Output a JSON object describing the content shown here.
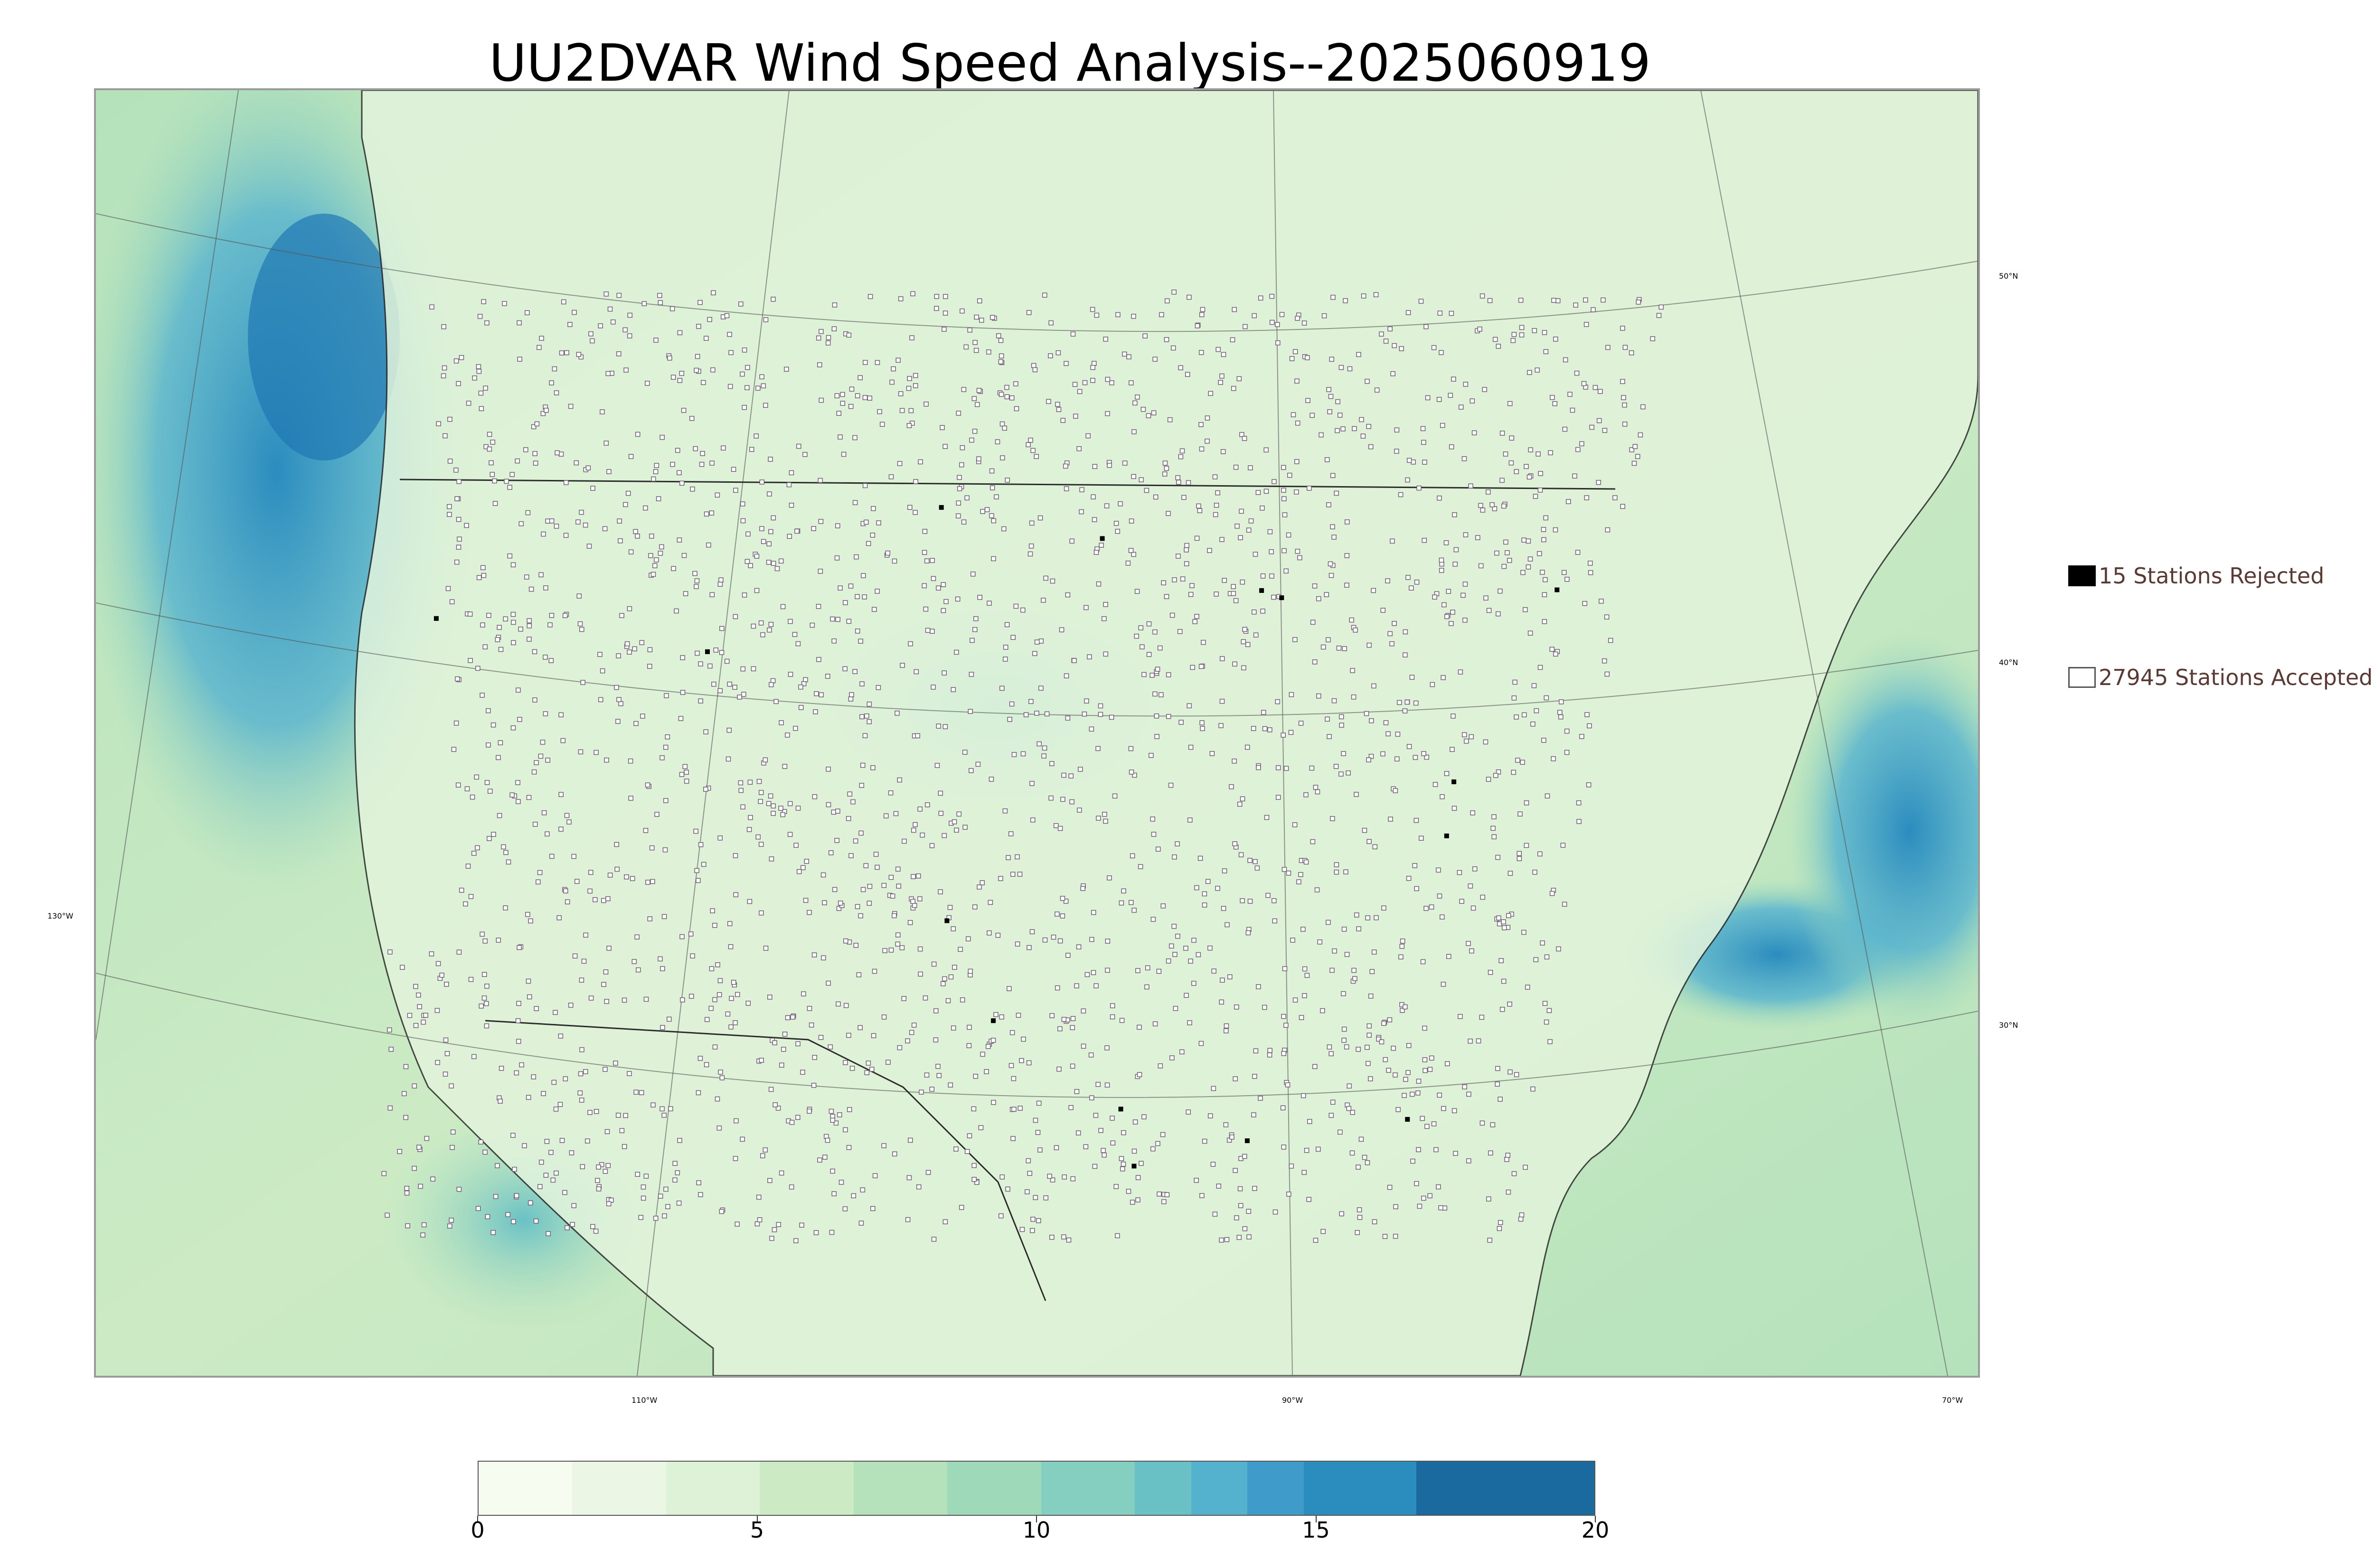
{
  "title": "UU2DVAR Wind Speed Analysis--2025060919",
  "map": {
    "longitude_labels": [
      "130°W",
      "110°W",
      "90°W",
      "70°W"
    ],
    "latitude_labels": [
      "50°N",
      "40°N",
      "30°N"
    ],
    "colors": {
      "land": "#d9f0d3",
      "ocean_calm": "#b9e3c6",
      "ocean_windy": "#4aa6cf",
      "ocean_strong": "#1f78b4",
      "border": "#2b2b2b",
      "station_marker": "#6f5f73"
    }
  },
  "legend": {
    "rejected": {
      "label": "15 Stations Rejected",
      "color": "#000000"
    },
    "accepted": {
      "label": "27945 Stations Accepted",
      "color": "#ffffff"
    }
  },
  "colorbar": {
    "min": 0,
    "max": 20,
    "ticks": [
      "0",
      "5",
      "10",
      "15",
      "20"
    ],
    "colors": [
      "#f7fcf0",
      "#ebf7e4",
      "#def2d8",
      "#ccebc5",
      "#b5e2bb",
      "#9ed9b9",
      "#84cfbf",
      "#69c1c6",
      "#54b2cf",
      "#3f9cca",
      "#2b8cbe",
      "#1a6aa0"
    ]
  }
}
